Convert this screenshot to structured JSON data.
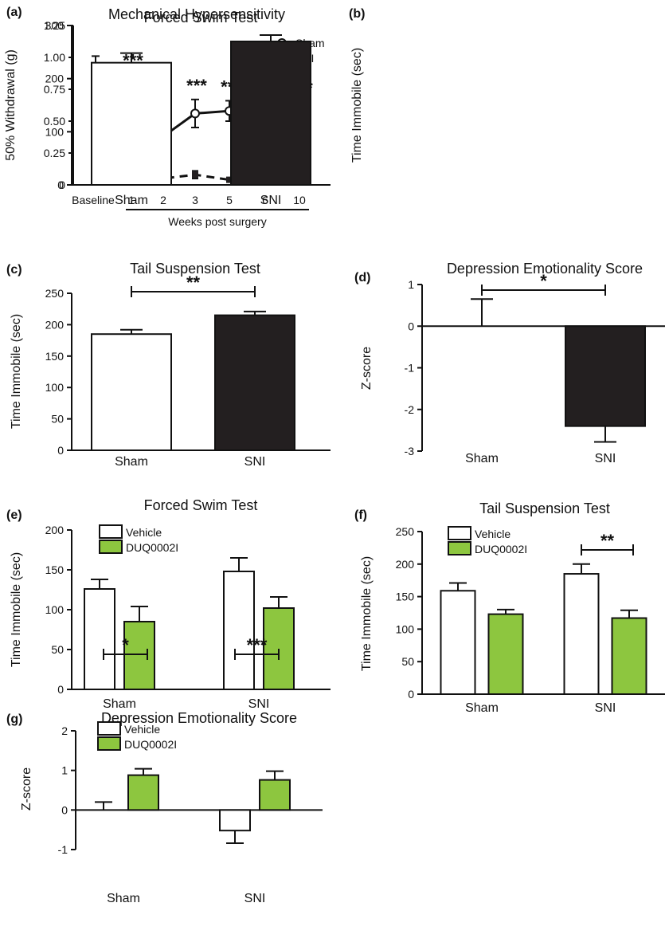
{
  "colors": {
    "axis": "#111111",
    "vehicle": "#ffffff",
    "drug": "#8dc63f",
    "sni_bar": "#231f20",
    "sham_bar": "#ffffff"
  },
  "chart_data": [
    {
      "panel": "(a)",
      "type": "line",
      "title": "Mechanical Hypersensitivity",
      "ylabel": "50% Withdrawal (g)",
      "xlabel": "Weeks post surgery",
      "ylim": [
        0,
        1.25
      ],
      "yticks": [
        "0",
        "0.25",
        "0.50",
        "0.75",
        "1.00",
        "1.25"
      ],
      "categories": [
        "Baseline",
        "1",
        "2",
        "3",
        "5",
        "6",
        "10"
      ],
      "series": [
        {
          "name": "Sham",
          "values": [
            0.9,
            0.74,
            0.38,
            0.56,
            0.58,
            0.7,
            0.57
          ],
          "errors": [
            0.11,
            0.15,
            0.07,
            0.11,
            0.08,
            0.09,
            0.08
          ],
          "style": "solid",
          "marker": "open-circle"
        },
        {
          "name": "SNI",
          "values": [
            0.9,
            0.05,
            0.05,
            0.08,
            0.04,
            0.07,
            0.04
          ],
          "errors": [
            0.11,
            0.0,
            0.0,
            0.03,
            0.0,
            0.03,
            0.0
          ],
          "style": "dashed",
          "marker": "filled-square"
        }
      ],
      "annotations": [
        "",
        "***",
        "**",
        "***",
        "***",
        "***",
        "***"
      ],
      "legend_position": "top-right"
    },
    {
      "panel": "(b)",
      "type": "bar",
      "title": "Forced Swim Test",
      "ylabel": "Time Immobile (sec)",
      "ylim": [
        0,
        300
      ],
      "yticks": [
        "0",
        "100",
        "200",
        "300"
      ],
      "categories": [
        "Sham",
        "SNI"
      ],
      "values": [
        230,
        270
      ],
      "errors": [
        18,
        12
      ]
    },
    {
      "panel": "(c)",
      "type": "bar",
      "title": "Tail Suspension Test",
      "ylabel": "Time Immobile (sec)",
      "ylim": [
        0,
        250
      ],
      "yticks": [
        "0",
        "50",
        "100",
        "150",
        "200",
        "250"
      ],
      "categories": [
        "Sham",
        "SNI"
      ],
      "values": [
        185,
        215
      ],
      "errors": [
        7,
        6
      ],
      "significance": "**"
    },
    {
      "panel": "(d)",
      "type": "bar",
      "title": "Depression Emotionality Score",
      "ylabel": "Z-score",
      "ylim": [
        -3,
        1
      ],
      "yticks": [
        "-3",
        "-2",
        "-1",
        "0",
        "1"
      ],
      "categories": [
        "Sham",
        "SNI"
      ],
      "values": [
        0.0,
        -2.4
      ],
      "errors": [
        0.65,
        0.38
      ],
      "significance": "*"
    },
    {
      "panel": "(e)",
      "type": "bar",
      "title": "Forced Swim Test",
      "ylabel": "Time Immobile (sec)",
      "ylim": [
        0,
        200
      ],
      "yticks": [
        "0",
        "50",
        "100",
        "150",
        "200"
      ],
      "categories": [
        "Sham",
        "SNI"
      ],
      "series": [
        {
          "name": "Vehicle",
          "values": [
            126,
            148
          ],
          "errors": [
            12,
            17
          ]
        },
        {
          "name": "DUQ0002I",
          "values": [
            85,
            102
          ],
          "errors": [
            19,
            14
          ]
        }
      ],
      "legend_position": "top-left"
    },
    {
      "panel": "(f)",
      "type": "bar",
      "title": "Tail Suspension Test",
      "ylabel": "Time Immobile (sec)",
      "ylim": [
        0,
        250
      ],
      "yticks": [
        "0",
        "50",
        "100",
        "150",
        "200",
        "250"
      ],
      "categories": [
        "Sham",
        "SNI"
      ],
      "series": [
        {
          "name": "Vehicle",
          "values": [
            159,
            185
          ],
          "errors": [
            12,
            15
          ]
        },
        {
          "name": "DUQ0002I",
          "values": [
            123,
            117
          ],
          "errors": [
            7,
            12
          ]
        }
      ],
      "significance": [
        "",
        "**"
      ],
      "legend_position": "top-left"
    },
    {
      "panel": "(g)",
      "type": "bar",
      "title": "Depression Emotionality Score",
      "ylabel": "Z-score",
      "ylim": [
        -1,
        2
      ],
      "yticks": [
        "-1",
        "0",
        "1",
        "2"
      ],
      "categories": [
        "Sham",
        "SNI"
      ],
      "series": [
        {
          "name": "Vehicle",
          "values": [
            0.0,
            -0.52
          ],
          "errors": [
            0.2,
            0.32
          ]
        },
        {
          "name": "DUQ0002I",
          "values": [
            0.88,
            0.76
          ],
          "errors": [
            0.16,
            0.22
          ]
        }
      ],
      "significance": [
        "*",
        "***"
      ],
      "legend_position": "top-left"
    }
  ]
}
